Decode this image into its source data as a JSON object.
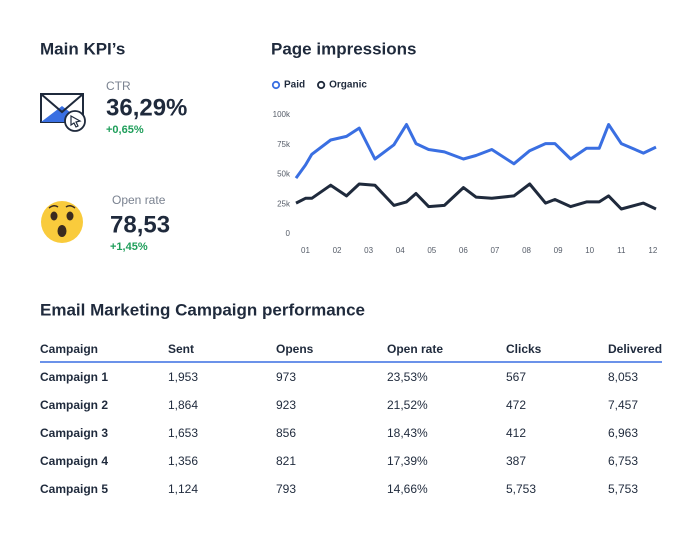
{
  "kpis": {
    "title": "Main KPI’s",
    "items": [
      {
        "label": "CTR",
        "value": "36,29%",
        "change": "+0,65%"
      },
      {
        "label": "Open rate",
        "value": "78,53",
        "change": "+1,45%"
      }
    ]
  },
  "chart_data": {
    "type": "line",
    "title": "Page impressions",
    "x": [
      0.7,
      1.0,
      1.2,
      1.8,
      2.3,
      2.7,
      3.2,
      3.8,
      4.2,
      4.5,
      4.9,
      5.4,
      6.0,
      6.4,
      6.9,
      7.6,
      8.1,
      8.6,
      8.9,
      9.4,
      9.9,
      10.3,
      10.6,
      11.0,
      11.7,
      12.1
    ],
    "series": [
      {
        "name": "Paid",
        "color": "#3a6fe2",
        "values": [
          47000,
          58000,
          67000,
          79000,
          82000,
          89000,
          63000,
          75000,
          92000,
          76000,
          71000,
          69000,
          63000,
          66000,
          71000,
          59000,
          70000,
          76000,
          76000,
          63000,
          72000,
          72000,
          92000,
          76000,
          68000,
          73000
        ]
      },
      {
        "name": "Organic",
        "color": "#1f2a3c",
        "values": [
          26000,
          30000,
          30000,
          41000,
          32000,
          42000,
          41000,
          24000,
          27000,
          34000,
          23000,
          24000,
          39000,
          31000,
          30000,
          32000,
          42000,
          26000,
          29000,
          23000,
          27000,
          27000,
          32000,
          21000,
          26000,
          21000
        ]
      }
    ],
    "xlim": [
      0.7,
      12.1
    ],
    "xticks": [
      {
        "value": 1,
        "label": "01"
      },
      {
        "value": 2,
        "label": "02"
      },
      {
        "value": 3,
        "label": "03"
      },
      {
        "value": 4,
        "label": "04"
      },
      {
        "value": 5,
        "label": "05"
      },
      {
        "value": 6,
        "label": "06"
      },
      {
        "value": 7,
        "label": "07"
      },
      {
        "value": 8,
        "label": "08"
      },
      {
        "value": 9,
        "label": "09"
      },
      {
        "value": 10,
        "label": "10"
      },
      {
        "value": 11,
        "label": "11"
      },
      {
        "value": 12,
        "label": "12"
      }
    ],
    "ylim": [
      0,
      100000
    ],
    "yticks": [
      0,
      {
        "value": 25000,
        "label": "25k"
      },
      {
        "value": 50000,
        "label": "50k"
      },
      {
        "value": 75000,
        "label": "75k"
      },
      {
        "value": 100000,
        "label": "100k"
      }
    ],
    "grid": false,
    "legend": "top"
  },
  "table": {
    "title": "Email Marketing Campaign performance",
    "header": [
      "Campaign",
      "Sent",
      "Opens",
      "Open rate",
      "Clicks",
      "Delivered"
    ],
    "rows": [
      [
        "Campaign 1",
        "1,953",
        "973",
        "23,53%",
        "567",
        "8,053"
      ],
      [
        "Campaign 2",
        "1,864",
        "923",
        "21,52%",
        "472",
        "7,457"
      ],
      [
        "Campaign 3",
        "1,653",
        "856",
        "18,43%",
        "412",
        "6,963"
      ],
      [
        "Campaign 4",
        "1,356",
        "821",
        "17,39%",
        "387",
        "6,753"
      ],
      [
        "Campaign 5",
        "1,124",
        "793",
        "14,66%",
        "5,753",
        "5,753"
      ]
    ]
  }
}
